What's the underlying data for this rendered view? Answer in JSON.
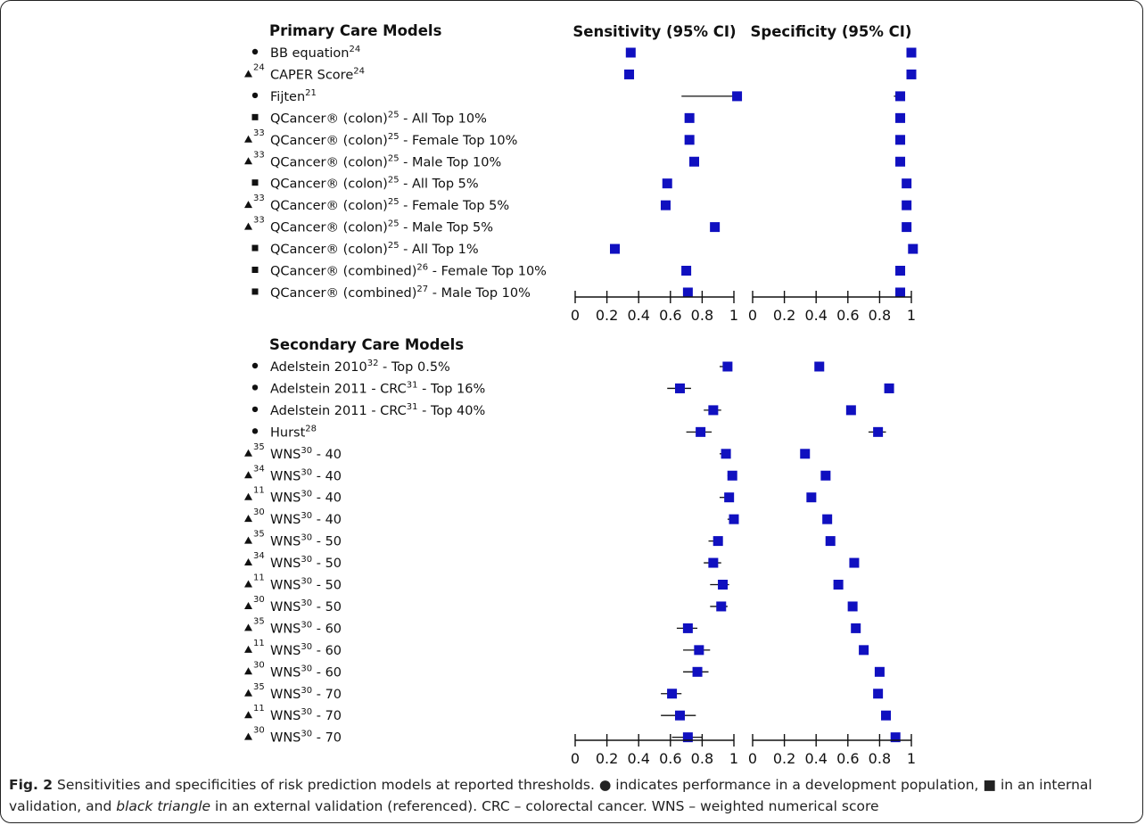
{
  "axis_labels": [
    "0",
    "0.2",
    "0.4",
    "0.6",
    "0.8",
    "1"
  ],
  "caption": {
    "fig_label": "Fig. 2",
    "part1": " Sensitivities and specificities of risk prediction models at reported thresholds. ",
    "circle_symbol": "●",
    "part2": " indicates performance in a development population, ",
    "square_symbol": "■",
    "part3": " in an internal validation, and ",
    "italic": "black triangle",
    "part4": " in an external validation (referenced). CRC – colorectal cancer. WNS – weighted numerical score"
  },
  "colors": {
    "marker": "#1010c0",
    "ink": "#111111"
  },
  "chart_data": {
    "type": "forest",
    "x_range": [
      0,
      1
    ],
    "column_headers": [
      "Sensitivity (95% CI)",
      "Specificity (95% CI)"
    ],
    "panels": [
      {
        "title": "Primary Care Models",
        "rows": [
          {
            "symbol": "circle",
            "label": "BB equation",
            "label_ref": "24",
            "sens": 0.35,
            "spec": 1.0
          },
          {
            "symbol": "triangle",
            "symbol_ref": "24",
            "label": "CAPER Score",
            "label_ref": "24",
            "sens": 0.34,
            "spec": 1.0
          },
          {
            "symbol": "circle",
            "label": "Fijten",
            "label_ref": "21",
            "sens": 1.02,
            "sens_ci": [
              0.67,
              1.02
            ],
            "spec": 0.93,
            "spec_ci": [
              0.89,
              0.95
            ]
          },
          {
            "symbol": "square",
            "label": "QCancer® (colon)",
            "label_ref": "25",
            "label_tail": " - All Top 10%",
            "sens": 0.72,
            "spec": 0.93
          },
          {
            "symbol": "triangle",
            "symbol_ref": "33",
            "label": "QCancer® (colon)",
            "label_ref": "25",
            "label_tail": " - Female Top 10%",
            "sens": 0.72,
            "spec": 0.93
          },
          {
            "symbol": "triangle",
            "symbol_ref": "33",
            "label": "QCancer® (colon)",
            "label_ref": "25",
            "label_tail": " - Male Top 10%",
            "sens": 0.75,
            "spec": 0.93
          },
          {
            "symbol": "square",
            "label": "QCancer® (colon)",
            "label_ref": "25",
            "label_tail": " - All Top 5%",
            "sens": 0.58,
            "spec": 0.97
          },
          {
            "symbol": "triangle",
            "symbol_ref": "33",
            "label": "QCancer® (colon)",
            "label_ref": "25",
            "label_tail": " - Female Top 5%",
            "sens": 0.57,
            "spec": 0.97
          },
          {
            "symbol": "triangle",
            "symbol_ref": "33",
            "label": "QCancer® (colon)",
            "label_ref": "25",
            "label_tail": " - Male Top 5%",
            "sens": 0.88,
            "spec": 0.97
          },
          {
            "symbol": "square",
            "label": "QCancer® (colon)",
            "label_ref": "25",
            "label_tail": " - All Top 1%",
            "sens": 0.25,
            "spec": 1.01
          },
          {
            "symbol": "square",
            "label": "QCancer® (combined)",
            "label_ref": "26",
            "label_tail": " - Female Top 10%",
            "sens": 0.7,
            "sens_ci": [
              0.68,
              0.72
            ],
            "spec": 0.93
          },
          {
            "symbol": "square",
            "label": "QCancer® (combined)",
            "label_ref": "27",
            "label_tail": " - Male Top 10%",
            "sens": 0.71,
            "spec": 0.93
          }
        ]
      },
      {
        "title": "Secondary Care Models",
        "rows": [
          {
            "symbol": "circle",
            "label": "Adelstein 2010",
            "label_ref": "32",
            "label_tail": " - Top 0.5%",
            "sens": 0.96,
            "sens_ci": [
              0.91,
              0.98
            ],
            "spec": 0.42
          },
          {
            "symbol": "circle",
            "label": "Adelstein 2011 - CRC",
            "label_ref": "31",
            "label_tail": " - Top 16%",
            "sens": 0.66,
            "sens_ci": [
              0.58,
              0.73
            ],
            "spec": 0.86
          },
          {
            "symbol": "circle",
            "label": "Adelstein 2011 - CRC",
            "label_ref": "31",
            "label_tail": " - Top 40%",
            "sens": 0.87,
            "sens_ci": [
              0.81,
              0.92
            ],
            "spec": 0.62
          },
          {
            "symbol": "circle",
            "label": "Hurst",
            "label_ref": "28",
            "sens": 0.79,
            "sens_ci": [
              0.7,
              0.86
            ],
            "spec": 0.79,
            "spec_ci": [
              0.73,
              0.84
            ]
          },
          {
            "symbol": "triangle",
            "symbol_ref": "35",
            "label": "WNS",
            "label_ref": "30",
            "label_tail": " - 40",
            "sens": 0.95,
            "sens_ci": [
              0.91,
              0.98
            ],
            "spec": 0.33
          },
          {
            "symbol": "triangle",
            "symbol_ref": "34",
            "label": "WNS",
            "label_ref": "30",
            "label_tail": " - 40",
            "sens": 0.99,
            "sens_ci": [
              0.96,
              1.0
            ],
            "spec": 0.46
          },
          {
            "symbol": "triangle",
            "symbol_ref": "11",
            "label": "WNS",
            "label_ref": "30",
            "label_tail": " - 40",
            "sens": 0.97,
            "sens_ci": [
              0.91,
              0.99
            ],
            "spec": 0.37,
            "spec_ci": [
              0.35,
              0.39
            ]
          },
          {
            "symbol": "triangle",
            "symbol_ref": "30",
            "label": "WNS",
            "label_ref": "30",
            "label_tail": " - 40",
            "sens": 1.0,
            "sens_ci": [
              0.96,
              1.0
            ],
            "spec": 0.47
          },
          {
            "symbol": "triangle",
            "symbol_ref": "35",
            "label": "WNS",
            "label_ref": "30",
            "label_tail": " - 50",
            "sens": 0.9,
            "sens_ci": [
              0.84,
              0.93
            ],
            "spec": 0.49
          },
          {
            "symbol": "triangle",
            "symbol_ref": "34",
            "label": "WNS",
            "label_ref": "30",
            "label_tail": " - 50",
            "sens": 0.87,
            "sens_ci": [
              0.81,
              0.92
            ],
            "spec": 0.64
          },
          {
            "symbol": "triangle",
            "symbol_ref": "11",
            "label": "WNS",
            "label_ref": "30",
            "label_tail": " - 50",
            "sens": 0.93,
            "sens_ci": [
              0.85,
              0.97
            ],
            "spec": 0.54,
            "spec_ci": [
              0.51,
              0.56
            ]
          },
          {
            "symbol": "triangle",
            "symbol_ref": "30",
            "label": "WNS",
            "label_ref": "30",
            "label_tail": " - 50",
            "sens": 0.92,
            "sens_ci": [
              0.85,
              0.96
            ],
            "spec": 0.63
          },
          {
            "symbol": "triangle",
            "symbol_ref": "35",
            "label": "WNS",
            "label_ref": "30",
            "label_tail": " - 60",
            "sens": 0.71,
            "sens_ci": [
              0.64,
              0.77
            ],
            "spec": 0.65
          },
          {
            "symbol": "triangle",
            "symbol_ref": "11",
            "label": "WNS",
            "label_ref": "30",
            "label_tail": " - 60",
            "sens": 0.78,
            "sens_ci": [
              0.68,
              0.85
            ],
            "spec": 0.7,
            "spec_ci": [
              0.68,
              0.72
            ]
          },
          {
            "symbol": "triangle",
            "symbol_ref": "30",
            "label": "WNS",
            "label_ref": "30",
            "label_tail": " - 60",
            "sens": 0.77,
            "sens_ci": [
              0.68,
              0.84
            ],
            "spec": 0.8
          },
          {
            "symbol": "triangle",
            "symbol_ref": "35",
            "label": "WNS",
            "label_ref": "30",
            "label_tail": " - 70",
            "sens": 0.61,
            "sens_ci": [
              0.54,
              0.67
            ],
            "spec": 0.79
          },
          {
            "symbol": "triangle",
            "symbol_ref": "11",
            "label": "WNS",
            "label_ref": "30",
            "label_tail": " - 70",
            "sens": 0.66,
            "sens_ci": [
              0.54,
              0.76
            ],
            "spec": 0.84,
            "spec_ci": [
              0.82,
              0.86
            ]
          },
          {
            "symbol": "triangle",
            "symbol_ref": "30",
            "label": "WNS",
            "label_ref": "30",
            "label_tail": " - 70",
            "sens": 0.71,
            "sens_ci": [
              0.61,
              0.8
            ],
            "spec": 0.9
          }
        ]
      }
    ]
  }
}
